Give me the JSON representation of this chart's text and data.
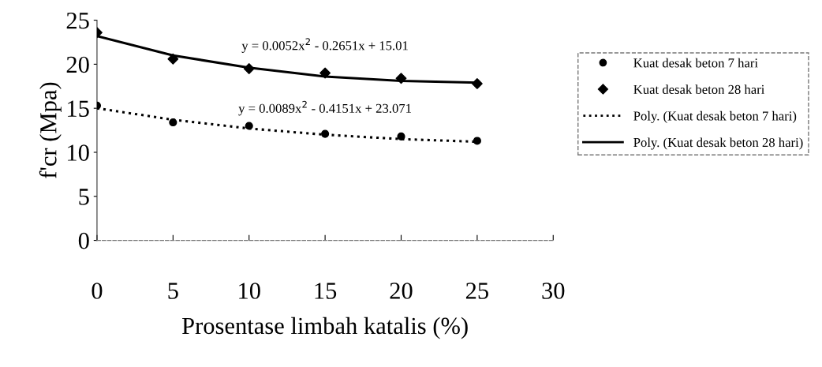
{
  "chart_data": {
    "type": "scatter",
    "xlabel": "Prosentase limbah katalis (%)",
    "ylabel": "f'cr (Mpa)",
    "x": [
      0,
      5,
      10,
      15,
      20,
      25
    ],
    "series": [
      {
        "name": "Kuat desak beton 7 hari",
        "color": "#000000",
        "marker": "circle",
        "values": [
          15.3,
          13.4,
          13.0,
          12.1,
          11.8,
          11.3
        ]
      },
      {
        "name": "Kuat desak beton 28 hari",
        "color": "#000000",
        "marker": "diamond",
        "values": [
          23.6,
          20.6,
          19.5,
          19.0,
          18.4,
          17.8
        ]
      },
      {
        "name": "Poly. (Kuat desak beton 7 hari)",
        "color": "#000000",
        "type": "line",
        "line_style": "dotted",
        "marker": "none",
        "x": [
          0,
          5,
          10,
          15,
          20,
          25
        ],
        "values": [
          15.0,
          13.7,
          12.7,
          12.0,
          11.5,
          11.2
        ]
      },
      {
        "name": "Poly. (Kuat desak beton 28 hari)",
        "color": "#000000",
        "type": "line",
        "line_style": "solid",
        "marker": "none",
        "x": [
          0,
          5,
          10,
          15,
          20,
          25
        ],
        "values": [
          23.2,
          21.0,
          19.6,
          18.6,
          18.1,
          17.9
        ]
      }
    ],
    "annotations": [
      "y = 0.0052x$^{2}$ - 0.2651x + 15.01",
      "y = 0.0089x$^{2}$ - 0.4151x + 23.071"
    ],
    "xlim": [
      0,
      30
    ],
    "xticks": [
      0,
      5,
      10,
      15,
      20,
      25,
      30
    ],
    "ylim": [
      0,
      25
    ],
    "yticks": [
      0,
      5,
      10,
      15,
      20,
      25
    ],
    "grid": false,
    "legend": "right"
  }
}
